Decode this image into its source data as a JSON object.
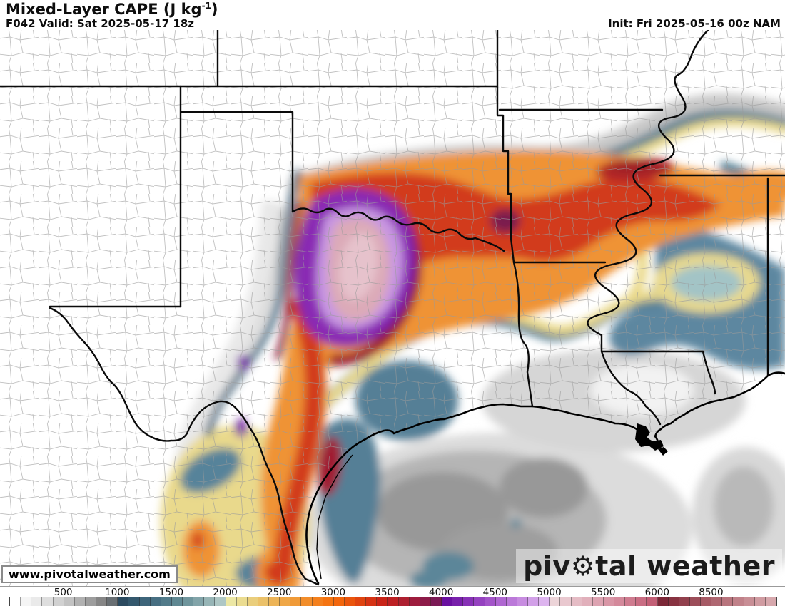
{
  "header": {
    "title_prefix": "Mixed-Layer CAPE (J kg",
    "title_sup": "-1",
    "title_suffix": ")",
    "valid": "F042 Valid: Sat 2025-05-17 18z",
    "init": "Init: Fri 2025-05-16 00z NAM"
  },
  "watermark": "www.pivotalweather.com",
  "logo": {
    "part1": "piv",
    "gear": "⚙",
    "part2": "tal weather"
  },
  "colorbar": {
    "unit": "J kg-1",
    "labels": [
      500,
      1000,
      1500,
      2000,
      2500,
      3000,
      3500,
      4000,
      4500,
      5000,
      5500,
      6000,
      8500
    ],
    "colors": [
      "#ffffff",
      "#f5f5f5",
      "#eaeaea",
      "#dedede",
      "#d1d1d1",
      "#c2c2c2",
      "#b1b1b1",
      "#9d9d9d",
      "#868686",
      "#696f73",
      "#2c4b60",
      "#34586d",
      "#3d657a",
      "#476f82",
      "#527b8a",
      "#5f8892",
      "#6f959c",
      "#82a4a9",
      "#97b5b6",
      "#aec7c5",
      "#ece7a4",
      "#ebdc90",
      "#eace7c",
      "#ebc169",
      "#edb457",
      "#efa747",
      "#f09a38",
      "#f28d2a",
      "#f4801d",
      "#f57411",
      "#f3660c",
      "#ea550d",
      "#e04410",
      "#d63314",
      "#c92418",
      "#bd2023",
      "#ae1f30",
      "#9e1d3d",
      "#8d1b49",
      "#7b1955",
      "#6a10a0",
      "#7820ab",
      "#8731b6",
      "#9542c0",
      "#a354c9",
      "#af66d1",
      "#bb79d9",
      "#c78ce0",
      "#d2a0e8",
      "#ddb4ef",
      "#ecd4d8",
      "#e9c8cf",
      "#e5bcc5",
      "#e1b0bb",
      "#dda3b1",
      "#d996a6",
      "#d4899b",
      "#cf7b8f",
      "#c96d83",
      "#c35f76",
      "#7c2737",
      "#883341",
      "#92404d",
      "#9c4d59",
      "#a65a65",
      "#af6771",
      "#b8747d",
      "#c08189",
      "#c88e95",
      "#d09ba1",
      "#d7a8ad"
    ]
  },
  "map_legend": {
    "field": "Mixed-Layer CAPE",
    "max_region_color": "#dcaab8",
    "high_band_color": "#8a2cb4",
    "moderate_band_color": "#ef9334",
    "low_band_color": "#4e7b91",
    "minimal_color": "#b5b5b5"
  }
}
